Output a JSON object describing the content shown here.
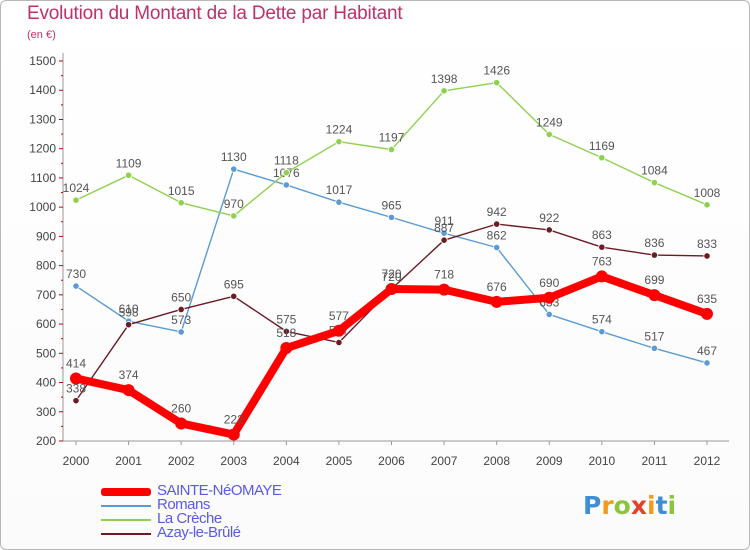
{
  "title": "Evolution du Montant de la Dette par Habitant",
  "subtitle": "(en €)",
  "chart_data": {
    "type": "line",
    "x": [
      "2000",
      "2001",
      "2002",
      "2003",
      "2004",
      "2005",
      "2006",
      "2007",
      "2008",
      "2009",
      "2010",
      "2011",
      "2012"
    ],
    "ylim": [
      200,
      1500
    ],
    "yticks": [
      200,
      300,
      400,
      500,
      600,
      700,
      800,
      900,
      1000,
      1100,
      1200,
      1300,
      1400,
      1500
    ],
    "grid": false,
    "legend_position": "bottom-left",
    "series": [
      {
        "name": "Romans",
        "color": "#5b9bd5",
        "values": [
          730,
          610,
          573,
          1130,
          1076,
          1017,
          965,
          911,
          862,
          633,
          574,
          517,
          467
        ]
      },
      {
        "name": "La Crèche",
        "color": "#8fd14f",
        "values": [
          1024,
          1109,
          1015,
          970,
          1118,
          1224,
          1197,
          1398,
          1426,
          1249,
          1169,
          1084,
          1008
        ]
      },
      {
        "name": "Azay-le-Brûlé",
        "color": "#6b1b24",
        "values": [
          338,
          598,
          650,
          695,
          575,
          537,
          720,
          887,
          942,
          922,
          863,
          836,
          833
        ]
      },
      {
        "name": "SAINTE-NéOMAYE",
        "color": "#ff0000",
        "values": [
          414,
          374,
          260,
          222,
          518,
          577,
          720,
          718,
          676,
          690,
          763,
          699,
          635
        ]
      }
    ]
  },
  "legend": [
    {
      "label": "SAINTE-NéOMAYE",
      "color": "#ff0000"
    },
    {
      "label": "Romans",
      "color": "#5b9bd5"
    },
    {
      "label": "La Crèche",
      "color": "#8fd14f"
    },
    {
      "label": "Azay-le-Brûlé",
      "color": "#6b1b24"
    }
  ],
  "logo": {
    "letters": [
      "P",
      "r",
      "o",
      "x",
      "i",
      "t",
      "i"
    ],
    "colors": [
      "#3f8ed6",
      "#f29a1a",
      "#8bc53f",
      "#e0442a",
      "#f29a1a",
      "#3f8ed6",
      "#8bc53f"
    ]
  }
}
